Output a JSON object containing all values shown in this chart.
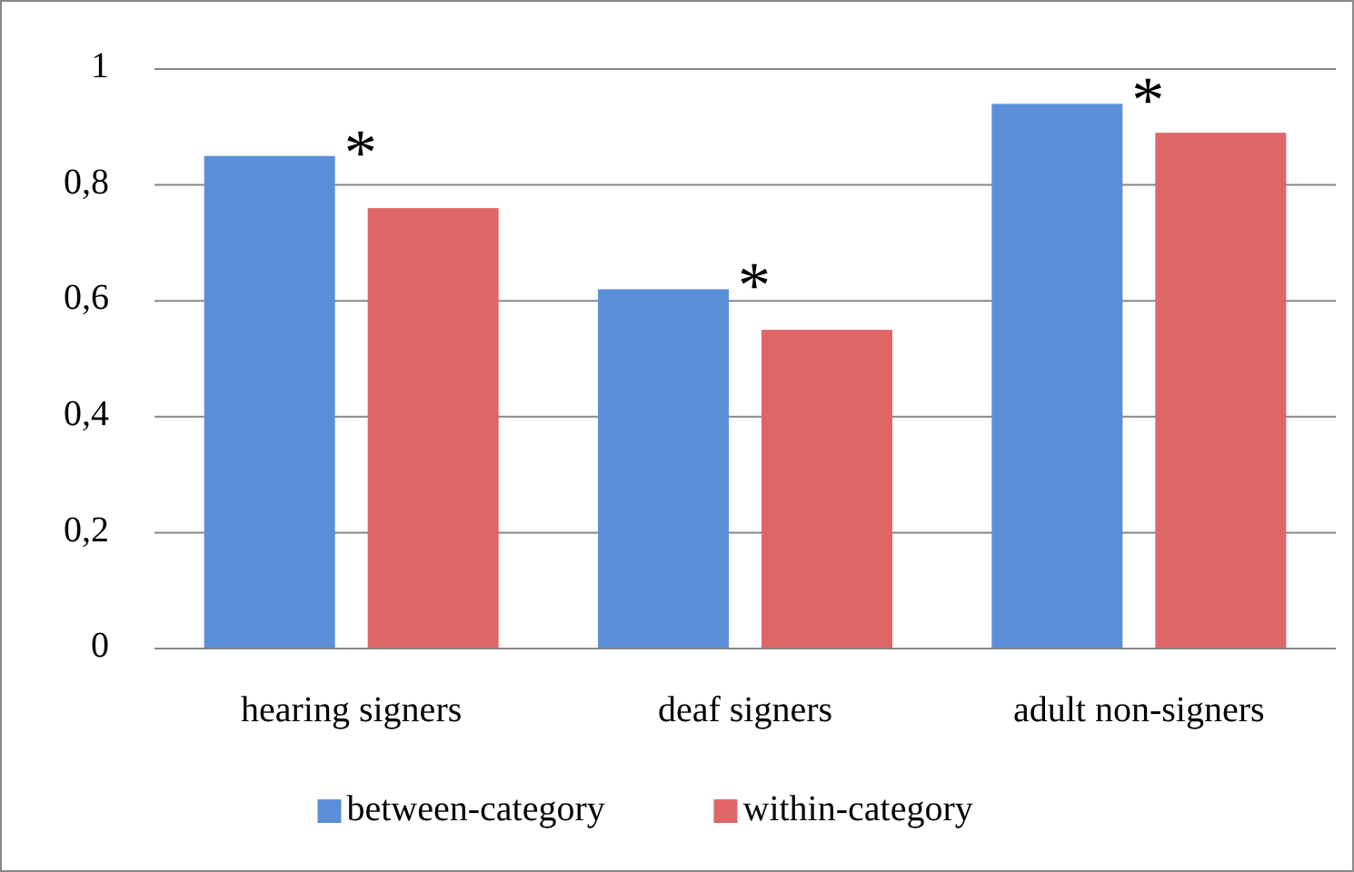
{
  "chart_data": {
    "type": "bar",
    "categories": [
      "hearing signers",
      "deaf signers",
      "adult non-signers"
    ],
    "series": [
      {
        "name": "between-category",
        "color": "#5b8fd9",
        "values": [
          0.85,
          0.62,
          0.94
        ]
      },
      {
        "name": "within-category",
        "color": "#e06666",
        "values": [
          0.76,
          0.55,
          0.89
        ]
      }
    ],
    "ylim": [
      0,
      1
    ],
    "yticks": [
      0,
      {
        "value": 0.2,
        "label": "0,2"
      },
      {
        "value": 0.4,
        "label": "0,4"
      },
      {
        "value": 0.6,
        "label": "0,6"
      },
      {
        "value": 0.8,
        "label": "0,8"
      },
      1
    ],
    "grid": "y",
    "legend": "bottom",
    "annotations": [
      "*",
      "*",
      "*"
    ]
  }
}
